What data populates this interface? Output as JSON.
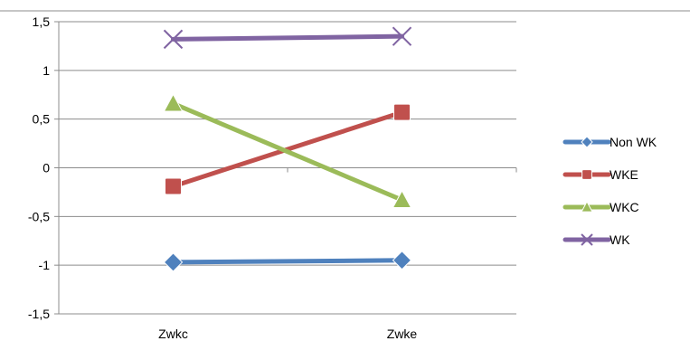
{
  "chart_data": {
    "type": "line",
    "categories": [
      "Zwkc",
      "Zwke"
    ],
    "ylim": [
      -1.5,
      1.5
    ],
    "ytick_values": [
      1.5,
      1,
      0.5,
      0,
      -0.5,
      -1,
      -1.5
    ],
    "ytick_labels": [
      "1,5",
      "1",
      "0,5",
      "0",
      "-0,5",
      "-1",
      "-1,5"
    ],
    "grid": true,
    "legend_position": "right",
    "series": [
      {
        "name": "Non WK",
        "values": [
          -0.97,
          -0.95
        ],
        "color": "#4F81BD",
        "marker": "diamond"
      },
      {
        "name": "WKE",
        "values": [
          -0.19,
          0.57
        ],
        "color": "#C0504D",
        "marker": "square"
      },
      {
        "name": "WKC",
        "values": [
          0.66,
          -0.33
        ],
        "color": "#9BBB59",
        "marker": "triangle"
      },
      {
        "name": "WK",
        "values": [
          1.32,
          1.35
        ],
        "color": "#8064A2",
        "marker": "x"
      }
    ]
  }
}
